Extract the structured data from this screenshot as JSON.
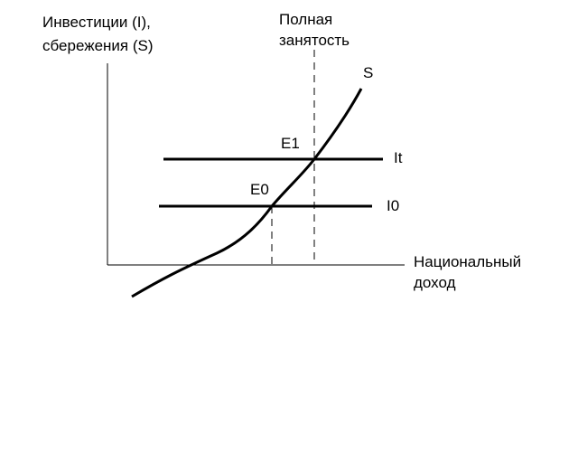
{
  "y_axis": {
    "label": [
      "Инвестиции (I),",
      "сбережения (S)"
    ]
  },
  "x_axis": {
    "label": [
      "Национальный",
      "доход"
    ]
  },
  "full_employment": {
    "label": [
      "Полная",
      "занятость"
    ]
  },
  "curves": {
    "savings": "S",
    "investment_full": "It",
    "investment_0": "I0"
  },
  "points": {
    "e1": "E1",
    "e0": "E0"
  }
}
